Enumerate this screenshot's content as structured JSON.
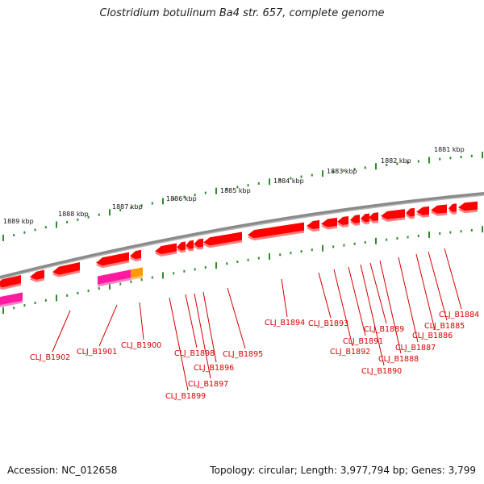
{
  "title": "Clostridium botulinum Ba4 str. 657, complete genome",
  "footer": {
    "accession": "Accession: NC_012658",
    "topology": "Topology: circular; Length: 3,977,794 bp; Genes: 3,799"
  },
  "colors": {
    "backbone": "#8a8a8a",
    "tick": "#2e8b2e",
    "gene": "#ff0000",
    "gene_shadow": "#ff8080",
    "gene_magenta": "#ff1aa0",
    "gene_orange": "#ff9a00",
    "label": "#d40000"
  },
  "ruler_labels": [
    "1889 kbp",
    "1888 kbp",
    "1887 kbp",
    "1886 kbp",
    "1885 kbp",
    "1884 kbp",
    "1883 kbp",
    "1882 kbp",
    "1881 kbp"
  ],
  "gene_labels": [
    "CLJ_B1902",
    "CLJ_B1901",
    "CLJ_B1900",
    "CLJ_B1899",
    "CLJ_B1898",
    "CLJ_B1897",
    "CLJ_B1896",
    "CLJ_B1895",
    "CLJ_B1894",
    "CLJ_B1893",
    "CLJ_B1892",
    "CLJ_B1891",
    "CLJ_B1890",
    "CLJ_B1889",
    "CLJ_B1888",
    "CLJ_B1887",
    "CLJ_B1886",
    "CLJ_B1885",
    "CLJ_B1884"
  ]
}
